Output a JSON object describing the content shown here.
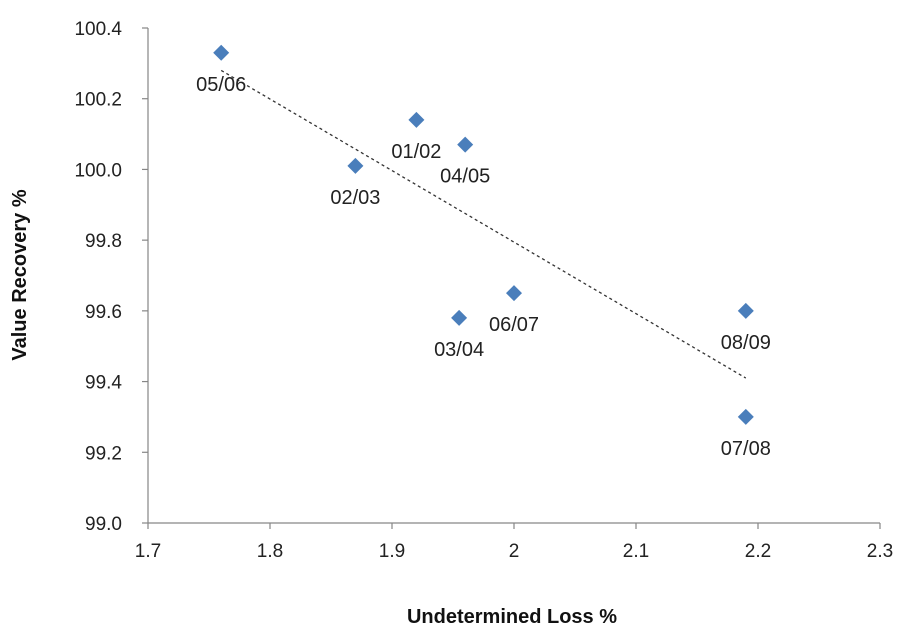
{
  "chart_data": {
    "type": "scatter",
    "title": "",
    "xlabel": "Undetermined Loss %",
    "ylabel": "Value Recovery %",
    "xlim": [
      1.7,
      2.3
    ],
    "ylim": [
      99.0,
      100.4
    ],
    "x_ticks": [
      "1.7",
      "1.8",
      "1.9",
      "2",
      "2.1",
      "2.2",
      "2.3"
    ],
    "y_ticks": [
      "99.0",
      "99.2",
      "99.4",
      "99.6",
      "99.8",
      "100.0",
      "100.2",
      "100.4"
    ],
    "grid": false,
    "legend": "none",
    "marker": "diamond",
    "marker_color": "#4a7ebb",
    "trendline": {
      "type": "linear",
      "style": "dotted",
      "color": "#333333",
      "from": [
        1.76,
        100.28
      ],
      "to": [
        2.19,
        99.41
      ]
    },
    "points": [
      {
        "label": "05/06",
        "x": 1.76,
        "y": 100.33,
        "label_pos": "below"
      },
      {
        "label": "02/03",
        "x": 1.87,
        "y": 100.01,
        "label_pos": "below"
      },
      {
        "label": "01/02",
        "x": 1.92,
        "y": 100.14,
        "label_pos": "below"
      },
      {
        "label": "04/05",
        "x": 1.96,
        "y": 100.07,
        "label_pos": "below"
      },
      {
        "label": "03/04",
        "x": 1.955,
        "y": 99.58,
        "label_pos": "below"
      },
      {
        "label": "06/07",
        "x": 2.0,
        "y": 99.65,
        "label_pos": "below"
      },
      {
        "label": "08/09",
        "x": 2.19,
        "y": 99.6,
        "label_pos": "below"
      },
      {
        "label": "07/08",
        "x": 2.19,
        "y": 99.3,
        "label_pos": "below"
      }
    ]
  }
}
